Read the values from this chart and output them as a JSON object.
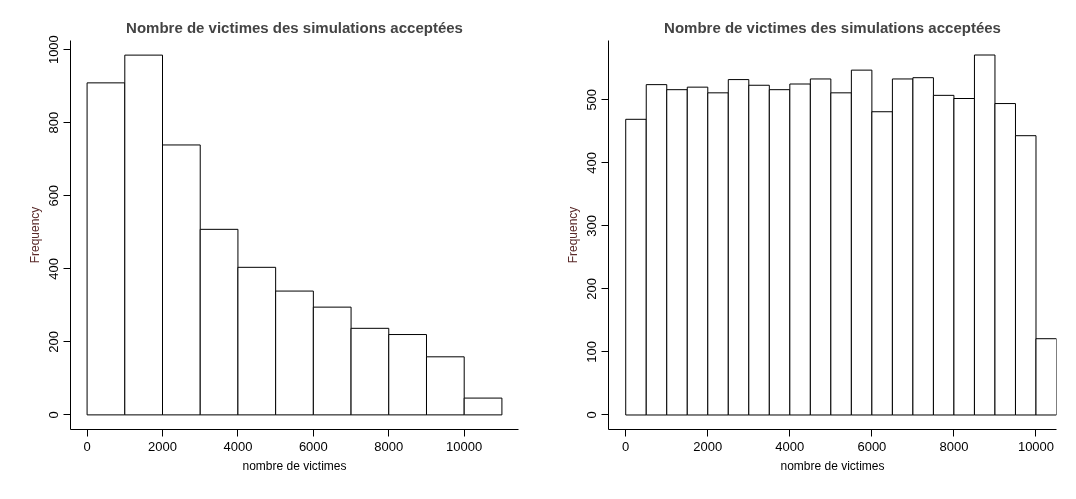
{
  "chart_data": [
    {
      "type": "histogram",
      "title": "Nombre de victimes des simulations acceptées",
      "xlabel": "nombre de victimes",
      "ylabel": "Frequency",
      "bins": [
        0,
        1000,
        2000,
        3000,
        4000,
        5000,
        6000,
        7000,
        8000,
        9000,
        10000,
        11000
      ],
      "values": [
        909,
        985,
        739,
        508,
        404,
        339,
        295,
        237,
        220,
        159,
        46
      ],
      "color": "#ffffff",
      "xlim": [
        -440,
        11440
      ],
      "ylim": [
        -40,
        1025
      ],
      "xticks": [
        0,
        2000,
        4000,
        6000,
        8000,
        10000
      ],
      "yticks": [
        0,
        200,
        400,
        600,
        800,
        1000
      ],
      "grid": false
    },
    {
      "type": "histogram",
      "title": "Nombre de victimes des simulations acceptées",
      "xlabel": "nombre de victimes",
      "ylabel": "Frequency",
      "bins": [
        0,
        500,
        1000,
        1500,
        2000,
        2500,
        3000,
        3500,
        4000,
        4500,
        5000,
        5500,
        6000,
        6500,
        7000,
        7500,
        8000,
        8500,
        9000,
        9500,
        10000,
        10500
      ],
      "values": [
        469,
        524,
        516,
        520,
        511,
        532,
        523,
        516,
        525,
        533,
        511,
        547,
        481,
        533,
        535,
        507,
        502,
        571,
        494,
        443,
        121
      ],
      "color": "#ffffff",
      "xlim": [
        -420,
        10500
      ],
      "ylim": [
        -23,
        594
      ],
      "xticks": [
        0,
        2000,
        4000,
        6000,
        8000,
        10000
      ],
      "yticks": [
        0,
        100,
        200,
        300,
        400,
        500
      ],
      "grid": false
    }
  ]
}
